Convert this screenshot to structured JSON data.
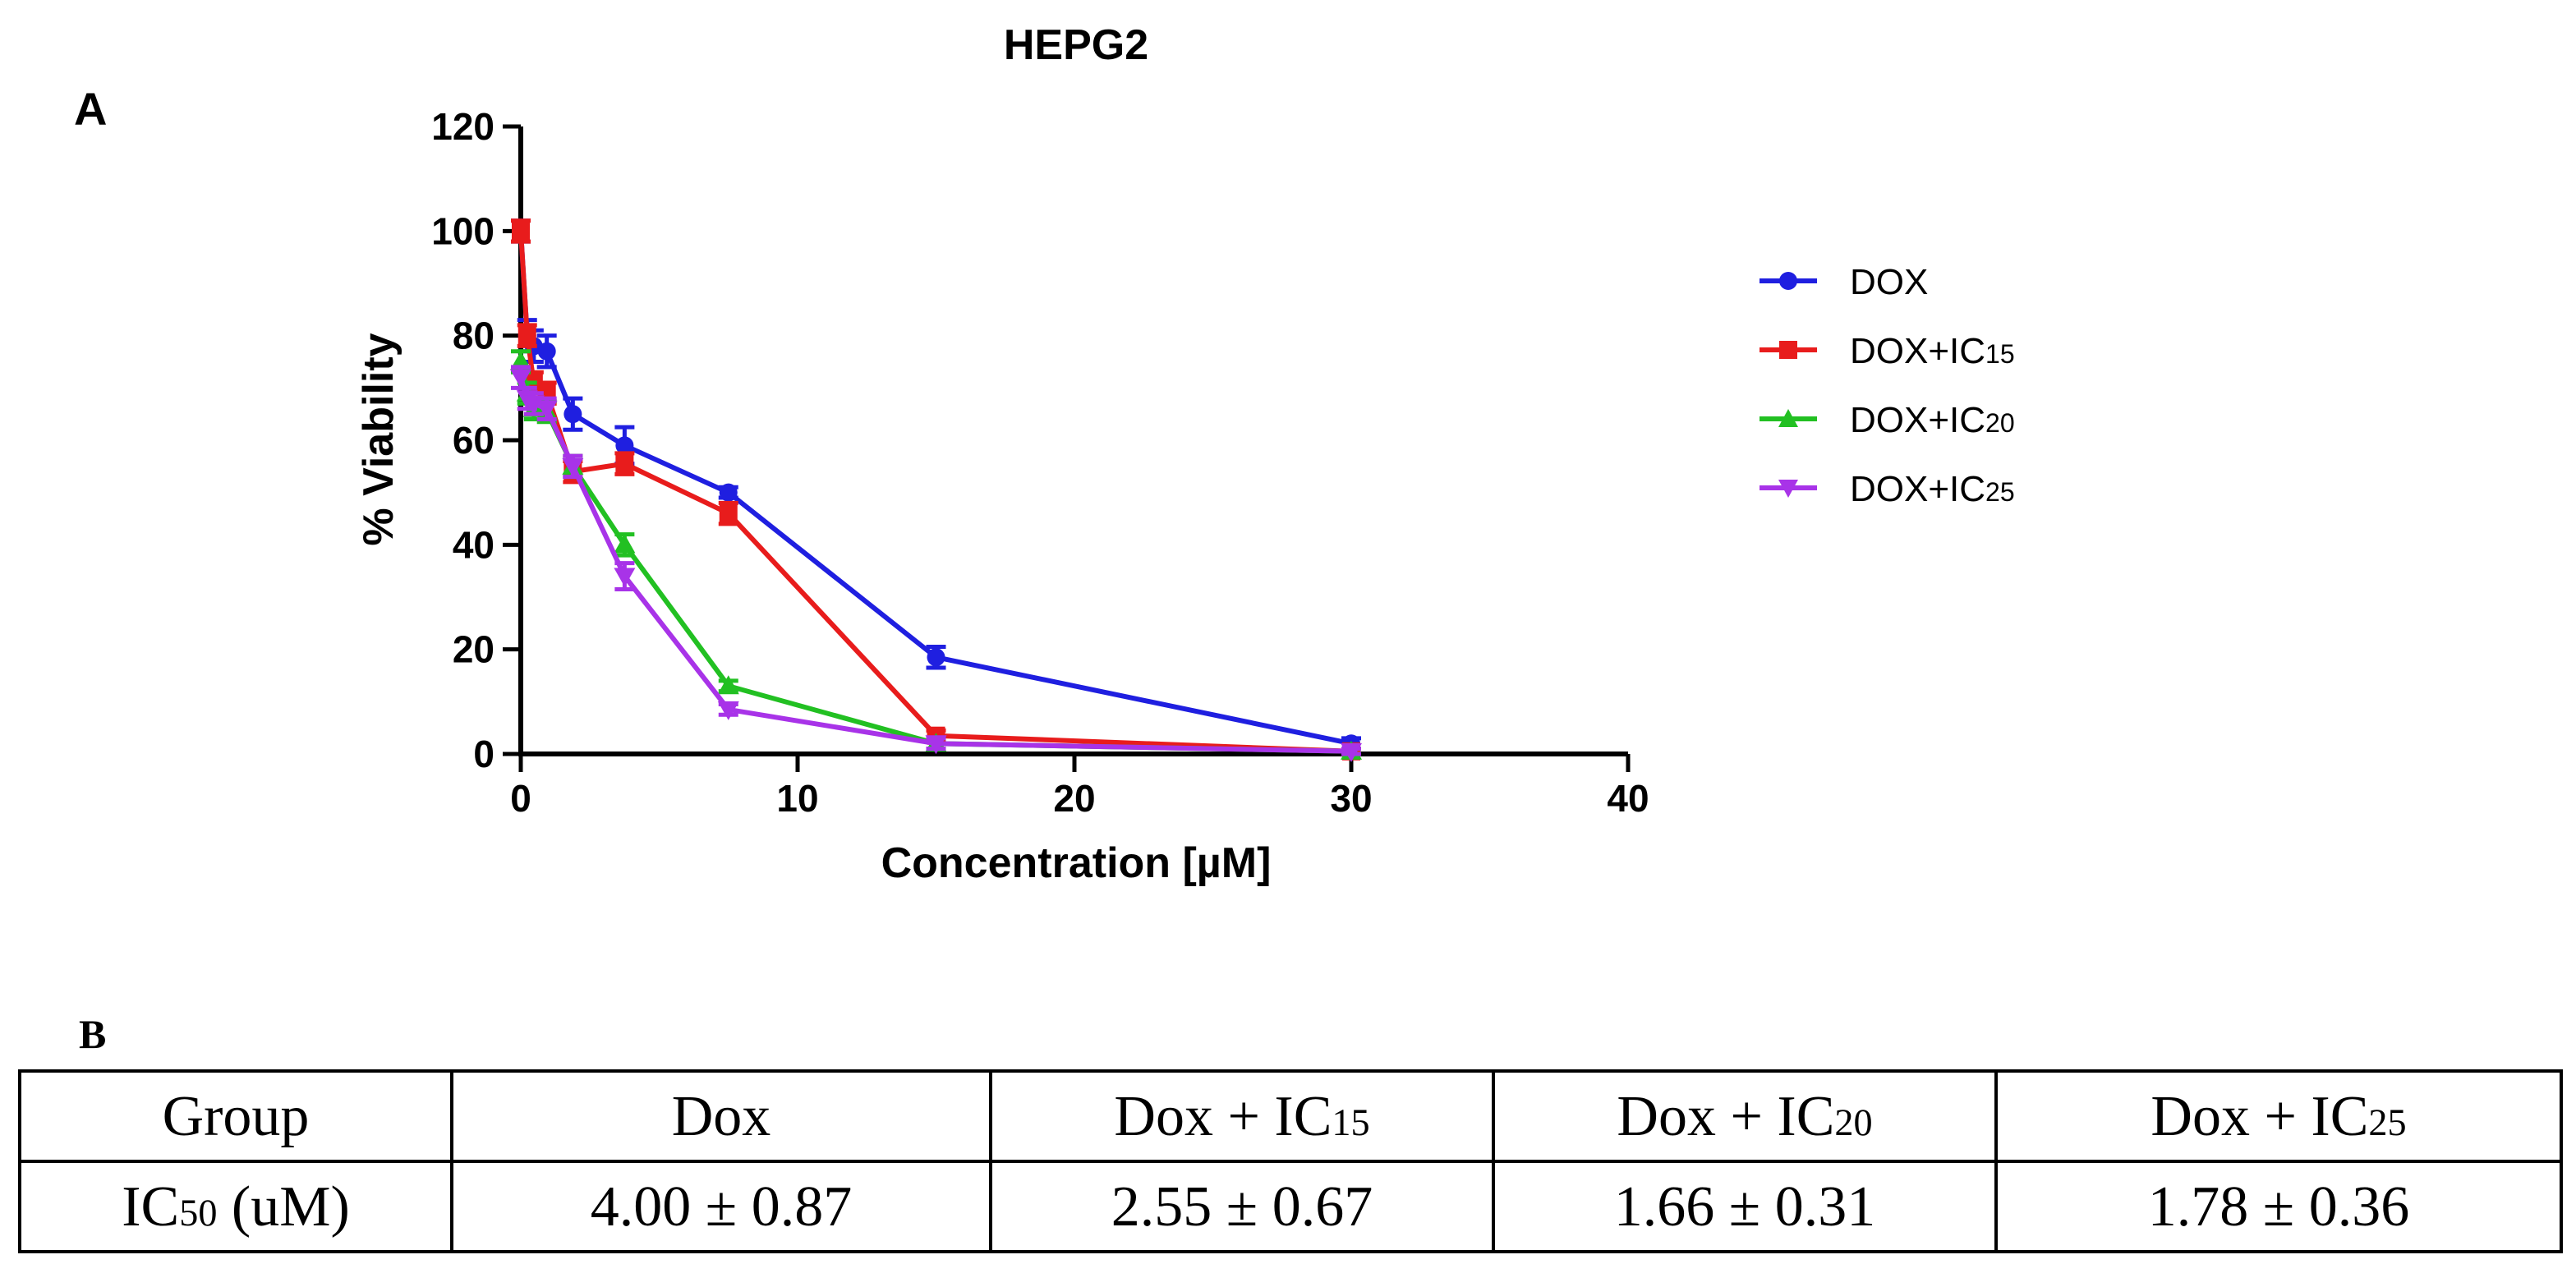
{
  "panel_labels": {
    "a": "A",
    "b": "B"
  },
  "chart_data": {
    "type": "line",
    "title": "HEPG2",
    "xlabel": "Concentration [µM]",
    "ylabel": "% Viability",
    "xlim": [
      0,
      40
    ],
    "ylim": [
      0,
      120
    ],
    "xticks": [
      0,
      10,
      20,
      30,
      40
    ],
    "yticks": [
      0,
      20,
      40,
      60,
      80,
      100,
      120
    ],
    "grid": false,
    "legend_position": "right",
    "series": [
      {
        "name": "DOX",
        "label_main": "DOX",
        "label_sub": "",
        "color": "#1f1fe0",
        "marker": "circle",
        "x": [
          0,
          0.23,
          0.47,
          0.94,
          1.88,
          3.75,
          7.5,
          15,
          30
        ],
        "y": [
          100,
          80,
          78,
          77,
          65,
          59,
          50,
          18.5,
          2
        ],
        "err": [
          2,
          3,
          3,
          3,
          3,
          3.5,
          1,
          2,
          1
        ]
      },
      {
        "name": "DOX+IC15",
        "label_main": "DOX+IC",
        "label_sub": "15",
        "color": "#e81c1c",
        "marker": "square",
        "x": [
          0,
          0.23,
          0.47,
          0.94,
          1.88,
          3.75,
          7.5,
          15,
          30
        ],
        "y": [
          100,
          80,
          71,
          69,
          54,
          55.5,
          46,
          3.5,
          0.5
        ],
        "err": [
          2,
          2,
          2,
          2,
          2,
          2,
          2,
          1,
          0.5
        ]
      },
      {
        "name": "DOX+IC20",
        "label_main": "DOX+IC",
        "label_sub": "20",
        "color": "#22c022",
        "marker": "triangle-up",
        "x": [
          0,
          0.23,
          0.47,
          0.94,
          1.88,
          3.75,
          7.5,
          15,
          30
        ],
        "y": [
          75,
          69,
          66,
          65.5,
          55,
          40,
          13,
          2,
          0.5
        ],
        "err": [
          2,
          2,
          2,
          2,
          2,
          2,
          1,
          1,
          0.5
        ]
      },
      {
        "name": "DOX+IC25",
        "label_main": "DOX+IC",
        "label_sub": "25",
        "color": "#a833e8",
        "marker": "triangle-down",
        "x": [
          0,
          0.23,
          0.47,
          0.94,
          1.88,
          3.75,
          7.5,
          15,
          30
        ],
        "y": [
          72,
          68,
          67,
          66,
          55,
          34,
          8.5,
          2,
          0.5
        ],
        "err": [
          2,
          2,
          2,
          2,
          2,
          2.5,
          1,
          1,
          0.5
        ]
      }
    ]
  },
  "table": {
    "header": {
      "group": "Group",
      "dox": "Dox",
      "ic15_main": "Dox + IC",
      "ic15_sub": "15",
      "ic20_main": "Dox + IC",
      "ic20_sub": "20",
      "ic25_main": "Dox + IC",
      "ic25_sub": "25"
    },
    "row": {
      "label_main": "IC",
      "label_sub": "50",
      "label_unit": " (uM)",
      "dox": "4.00 ± 0.87",
      "ic15": "2.55 ± 0.67",
      "ic20": "1.66 ± 0.31",
      "ic25": "1.78 ± 0.36"
    }
  }
}
